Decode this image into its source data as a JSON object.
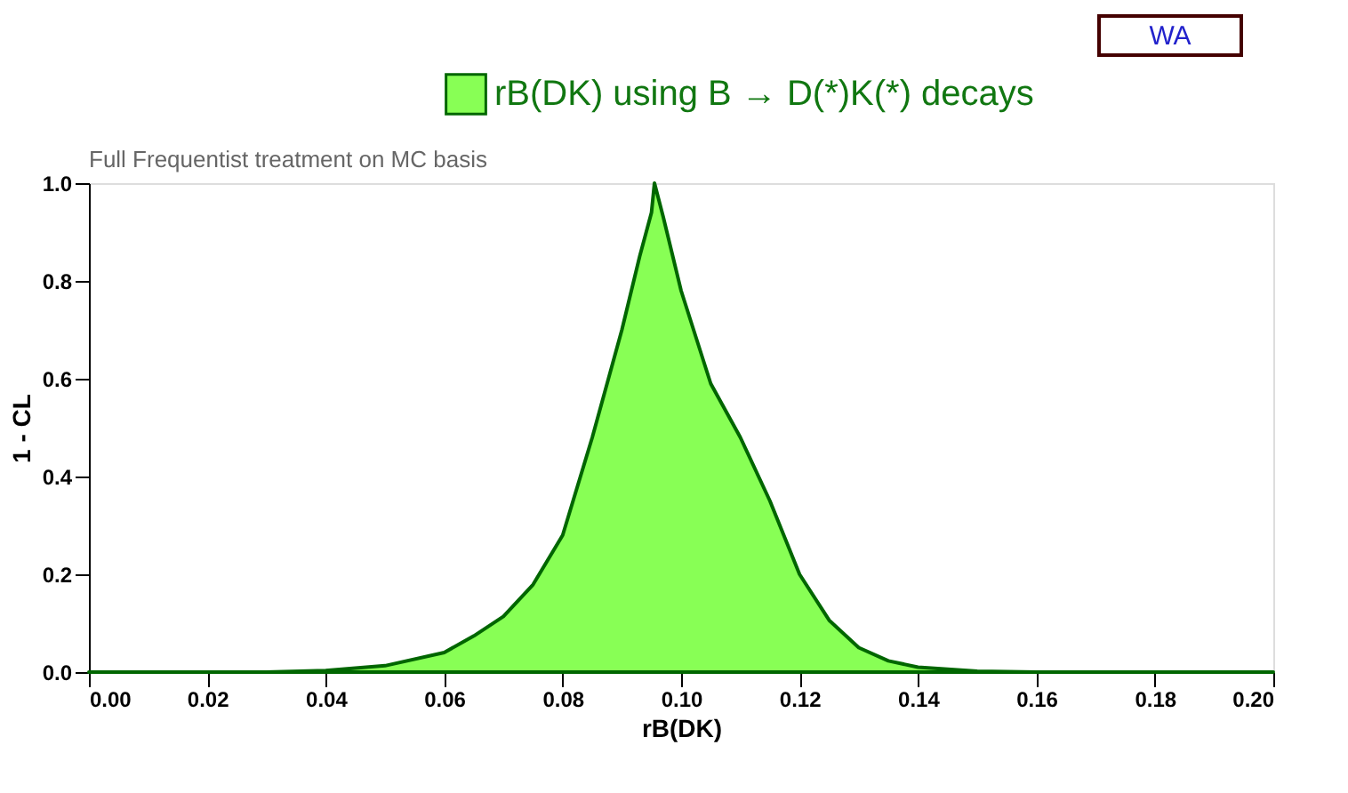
{
  "chart_data": {
    "type": "area",
    "subtitle": "Full Frequentist treatment on MC basis",
    "xlabel": "rB(DK)",
    "ylabel": "1 - CL",
    "annotations": [
      "WA"
    ],
    "x": [
      0.0,
      0.03,
      0.04,
      0.05,
      0.06,
      0.065,
      0.07,
      0.075,
      0.08,
      0.085,
      0.09,
      0.093,
      0.095,
      0.0955,
      0.097,
      0.1,
      0.105,
      0.11,
      0.115,
      0.12,
      0.125,
      0.13,
      0.135,
      0.14,
      0.15,
      0.16,
      0.2
    ],
    "series": [
      {
        "name": "rB(DK) using B → D(*)K(*) decays",
        "color": "#88ff55",
        "values": [
          0.0,
          0.0,
          0.003,
          0.013,
          0.04,
          0.074,
          0.114,
          0.179,
          0.28,
          0.48,
          0.7,
          0.85,
          0.94,
          1.0,
          0.93,
          0.78,
          0.59,
          0.48,
          0.35,
          0.2,
          0.106,
          0.05,
          0.023,
          0.01,
          0.002,
          0.0,
          0.0
        ]
      }
    ],
    "xlim": [
      0.0,
      0.2
    ],
    "ylim": [
      0.0,
      1.0
    ],
    "xticks": [
      {
        "value": 0,
        "label": "0.00"
      },
      0.02,
      0.04,
      0.06,
      0.08,
      {
        "value": 0.1,
        "label": "0.10"
      },
      0.12,
      0.14,
      0.16,
      0.18,
      {
        "value": 0.2,
        "label": "0.20"
      }
    ],
    "yticks": [
      {
        "value": 0,
        "label": "0.0"
      },
      0.2,
      0.4,
      0.6,
      0.8,
      {
        "value": 1,
        "label": "1.0"
      }
    ],
    "grid": false,
    "legend": "top right"
  }
}
